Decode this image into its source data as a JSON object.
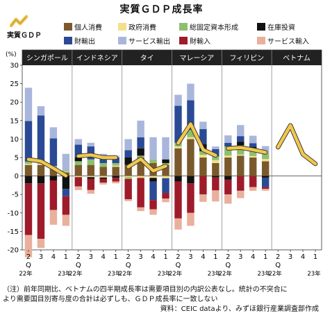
{
  "title": "実質ＧＤＰ成長率",
  "legend": {
    "line_label": "実質ＧＤＰ",
    "items": [
      {
        "label": "個人消費",
        "color": "#7a5a2c"
      },
      {
        "label": "政府消費",
        "color": "#f3e08a"
      },
      {
        "label": "総固定資本形成",
        "color": "#8fbf6e"
      },
      {
        "label": "在庫投資",
        "color": "#111111"
      },
      {
        "label": "財輸出",
        "color": "#2a4a96"
      },
      {
        "label": "サービス輸出",
        "color": "#a9b6dc"
      },
      {
        "label": "財輸入",
        "color": "#9e1b2b"
      },
      {
        "label": "サービス輸入",
        "color": "#e9b09c"
      }
    ]
  },
  "chart_data": {
    "type": "bar",
    "stacked": true,
    "unit_label": "(%)",
    "ylim": [
      -20,
      30
    ],
    "yticks": [
      30,
      25,
      20,
      15,
      10,
      5,
      0,
      -5,
      -10,
      -15,
      -20
    ],
    "quarter_labels": [
      "2",
      "3",
      "4",
      "1"
    ],
    "q_label": "Q",
    "year_start_label": "22年",
    "year_end_label": "23年",
    "gdp_line_color": "#f2c84b",
    "panels": [
      {
        "name": "シンガポール",
        "categories": [
          "2Q22",
          "3Q22",
          "4Q22",
          "1Q23"
        ],
        "components": {
          "個人消費": [
            3.0,
            3.0,
            2.0,
            1.0
          ],
          "政府消費": [
            0.3,
            0.3,
            0.2,
            0.2
          ],
          "総固定資本形成": [
            0.6,
            0.6,
            0.5,
            0.3
          ],
          "在庫投資": [
            -2.0,
            -2.0,
            -1.2,
            -3.5
          ],
          "財輸出": [
            11.0,
            12.5,
            7.5,
            -2.0
          ],
          "サービス輸出": [
            9.0,
            2.5,
            3.0,
            4.5
          ],
          "財輸入": [
            -14.0,
            -15.0,
            -8.0,
            -5.0
          ],
          "サービス輸入": [
            -6.0,
            -2.5,
            -4.0,
            -3.0
          ]
        },
        "gdp": [
          4.5,
          4.0,
          2.1,
          0.1
        ]
      },
      {
        "name": "インドネシア",
        "categories": [
          "2Q22",
          "3Q22",
          "4Q22",
          "1Q23"
        ],
        "components": {
          "個人消費": [
            3.0,
            3.0,
            2.5,
            2.5
          ],
          "政府消費": [
            -0.3,
            -0.3,
            -0.4,
            0.3
          ],
          "総固定資本形成": [
            1.0,
            1.5,
            1.0,
            0.7
          ],
          "在庫投資": [
            1.0,
            -0.5,
            -0.4,
            -0.5
          ],
          "財輸出": [
            3.5,
            3.5,
            2.0,
            1.5
          ],
          "サービス輸出": [
            1.5,
            1.0,
            0.5,
            0.5
          ],
          "財輸入": [
            -2.5,
            -3.0,
            -1.0,
            -1.0
          ],
          "サービス輸入": [
            -1.0,
            -1.0,
            -0.5,
            -0.5
          ]
        },
        "gdp": [
          5.4,
          5.7,
          5.0,
          5.0
        ]
      },
      {
        "name": "タイ",
        "categories": [
          "2Q22",
          "3Q22",
          "4Q22",
          "1Q23"
        ],
        "components": {
          "個人消費": [
            3.0,
            5.0,
            3.5,
            3.0
          ],
          "政府消費": [
            -0.3,
            -0.5,
            -0.5,
            -0.6
          ],
          "総固定資本形成": [
            -0.5,
            0.5,
            1.0,
            0.5
          ],
          "在庫投資": [
            2.0,
            2.0,
            -1.0,
            1.0
          ],
          "財輸出": [
            2.0,
            3.0,
            -5.0,
            -4.0
          ],
          "サービス輸出": [
            3.0,
            4.5,
            6.0,
            6.0
          ],
          "財輸入": [
            -5.5,
            -8.0,
            -2.5,
            -1.5
          ],
          "サービス輸入": [
            -0.5,
            -1.0,
            -1.5,
            -1.0
          ]
        },
        "gdp": [
          2.5,
          4.6,
          1.4,
          2.7
        ]
      },
      {
        "name": "マレーシア",
        "categories": [
          "2Q22",
          "3Q22",
          "4Q22",
          "1Q23"
        ],
        "components": {
          "個人消費": [
            7.5,
            10.0,
            5.0,
            3.5
          ],
          "政府消費": [
            0.5,
            0.5,
            0.7,
            0.8
          ],
          "総固定資本形成": [
            1.0,
            2.0,
            1.0,
            1.0
          ],
          "在庫投資": [
            -1.5,
            -2.0,
            2.0,
            -0.4
          ],
          "財輸出": [
            10.0,
            8.0,
            4.0,
            2.0
          ],
          "サービス輸出": [
            3.0,
            4.5,
            2.0,
            0.7
          ],
          "財輸入": [
            -10.0,
            -8.0,
            -5.0,
            -3.5
          ],
          "サービス輸入": [
            -3.0,
            -3.5,
            -2.0,
            -3.0
          ]
        },
        "gdp": [
          8.9,
          14.1,
          7.1,
          5.6
        ]
      },
      {
        "name": "フィリピン",
        "categories": [
          "2Q22",
          "3Q22",
          "4Q22",
          "1Q23"
        ],
        "components": {
          "個人消費": [
            5.0,
            5.5,
            5.0,
            4.0
          ],
          "政府消費": [
            0.5,
            0.3,
            0.4,
            0.6
          ],
          "総固定資本形成": [
            2.5,
            2.5,
            1.5,
            1.5
          ],
          "在庫投資": [
            -1.0,
            1.0,
            1.0,
            -0.5
          ],
          "財輸出": [
            1.0,
            1.5,
            1.0,
            -2.5
          ],
          "サービス輸出": [
            2.0,
            3.0,
            2.0,
            2.0
          ],
          "財輸入": [
            -4.0,
            -4.0,
            -3.0,
            -0.5
          ],
          "サービス輸入": [
            -2.5,
            -2.0,
            -1.0,
            -0.5
          ]
        },
        "gdp": [
          7.5,
          7.7,
          7.1,
          6.4
        ]
      },
      {
        "name": "ベトナム",
        "categories": [
          "2Q22",
          "3Q22",
          "4Q22",
          "1Q23"
        ],
        "components": {},
        "gdp": [
          7.8,
          13.7,
          5.9,
          3.3
        ]
      }
    ]
  },
  "notes": {
    "line1": "（注）前年同期比、ベトナムの四半期成長率は需要項目別の内訳公表なし。統計の不突合に",
    "line2": "より需要国目別寄与度の合計は必ずしも、ＧＤＰ成長率に一致しない",
    "source": "資料：CEIC dataより、みずほ銀行産業調査部作成"
  }
}
